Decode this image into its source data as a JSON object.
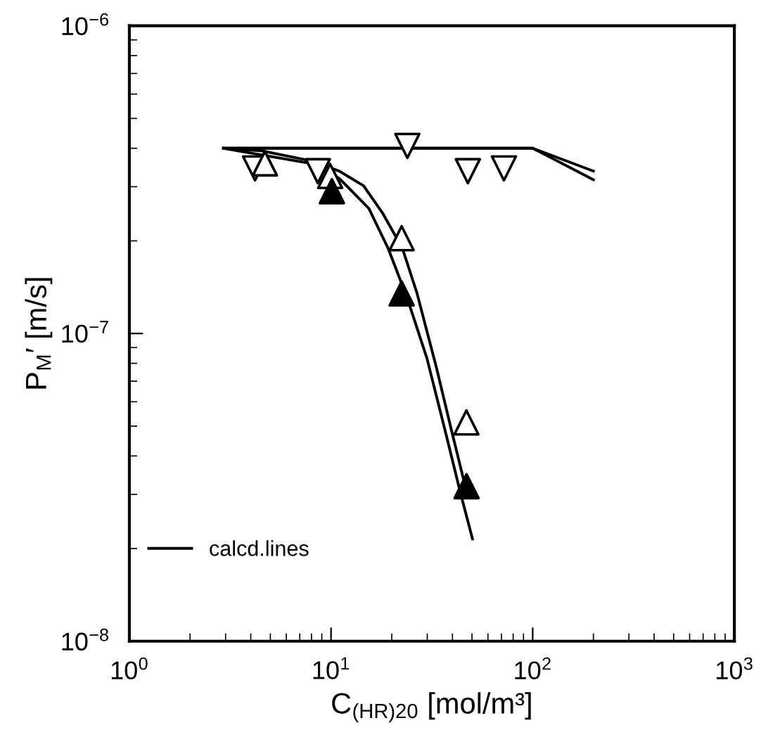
{
  "chart_data": {
    "type": "scatter",
    "xlabel": "C$_{(HR)20}$ [mol/m³]",
    "ylabel": "P$_{M}$′ [m/s]",
    "log": "xy",
    "xlim": [
      1,
      1000
    ],
    "xticks": [
      {
        "value": 1,
        "label": "10$^{0}$"
      },
      {
        "value": 10,
        "label": "10$^{1}$"
      },
      {
        "value": 100,
        "label": "10$^{2}$"
      },
      {
        "value": 1000,
        "label": "10$^{3}$"
      }
    ],
    "ylim": [
      1e-08,
      1e-06
    ],
    "yticks": [
      {
        "value": 1e-08,
        "label": "10$^{−8}$"
      },
      {
        "value": 1e-07,
        "label": "10$^{−7}$"
      },
      {
        "value": 1e-06,
        "label": "10$^{−6}$"
      }
    ],
    "grid": false,
    "legend": "bottom left",
    "series": [
      {
        "marker": "triangle_down",
        "color": "#ffffff",
        "x": [
          4.2,
          8.6,
          23.9,
          47.7,
          72
        ],
        "values": [
          3.44e-07,
          3.37e-07,
          4.07e-07,
          3.37e-07,
          3.44e-07
        ]
      },
      {
        "marker": "triangle",
        "color": "#ffffff",
        "x": [
          4.7,
          9.9,
          22.4,
          46.9
        ],
        "values": [
          3.57e-07,
          3.25e-07,
          2.04e-07,
          5.14e-08
        ]
      },
      {
        "marker": "triangle",
        "color": "#000000",
        "x": [
          10.1,
          22.4,
          47
        ],
        "values": [
          2.9e-07,
          1.35e-07,
          3.19e-08
        ]
      },
      {
        "type": "line",
        "name": "calcd.lines",
        "marker": "none",
        "line_style": "solid",
        "color": "#000000",
        "x": [
          2.93,
          100,
          200
        ],
        "values": [
          4e-07,
          4e-07,
          3.37e-07
        ]
      },
      {
        "type": "line",
        "marker": "none",
        "line_style": "solid",
        "color": "#000000",
        "x": [
          2.93,
          100,
          200
        ],
        "values": [
          4e-07,
          4e-07,
          3.16e-07
        ]
      },
      {
        "type": "line",
        "marker": "none",
        "line_style": "solid",
        "color": "#000000",
        "x": [
          2.93,
          4.56,
          7.93,
          11.0,
          14.5,
          18.1,
          22.6,
          26.7,
          33.4,
          39.4,
          47
        ],
        "values": [
          4e-07,
          3.92e-07,
          3.64e-07,
          3.37e-07,
          3.02e-07,
          2.45e-07,
          1.89e-07,
          1.35e-07,
          7.7e-08,
          4.9e-08,
          3.06e-08
        ]
      },
      {
        "type": "line",
        "marker": "none",
        "line_style": "solid",
        "color": "#000000",
        "x": [
          2.93,
          7.93,
          11.0,
          15.4,
          19.2,
          23.9,
          29.9,
          37.1,
          43.9,
          50.3
        ],
        "values": [
          4e-07,
          3.57e-07,
          3.19e-07,
          2.55e-07,
          1.89e-07,
          1.3e-07,
          8.3e-08,
          4.73e-08,
          3.02e-08,
          2.15e-08
        ]
      }
    ]
  }
}
